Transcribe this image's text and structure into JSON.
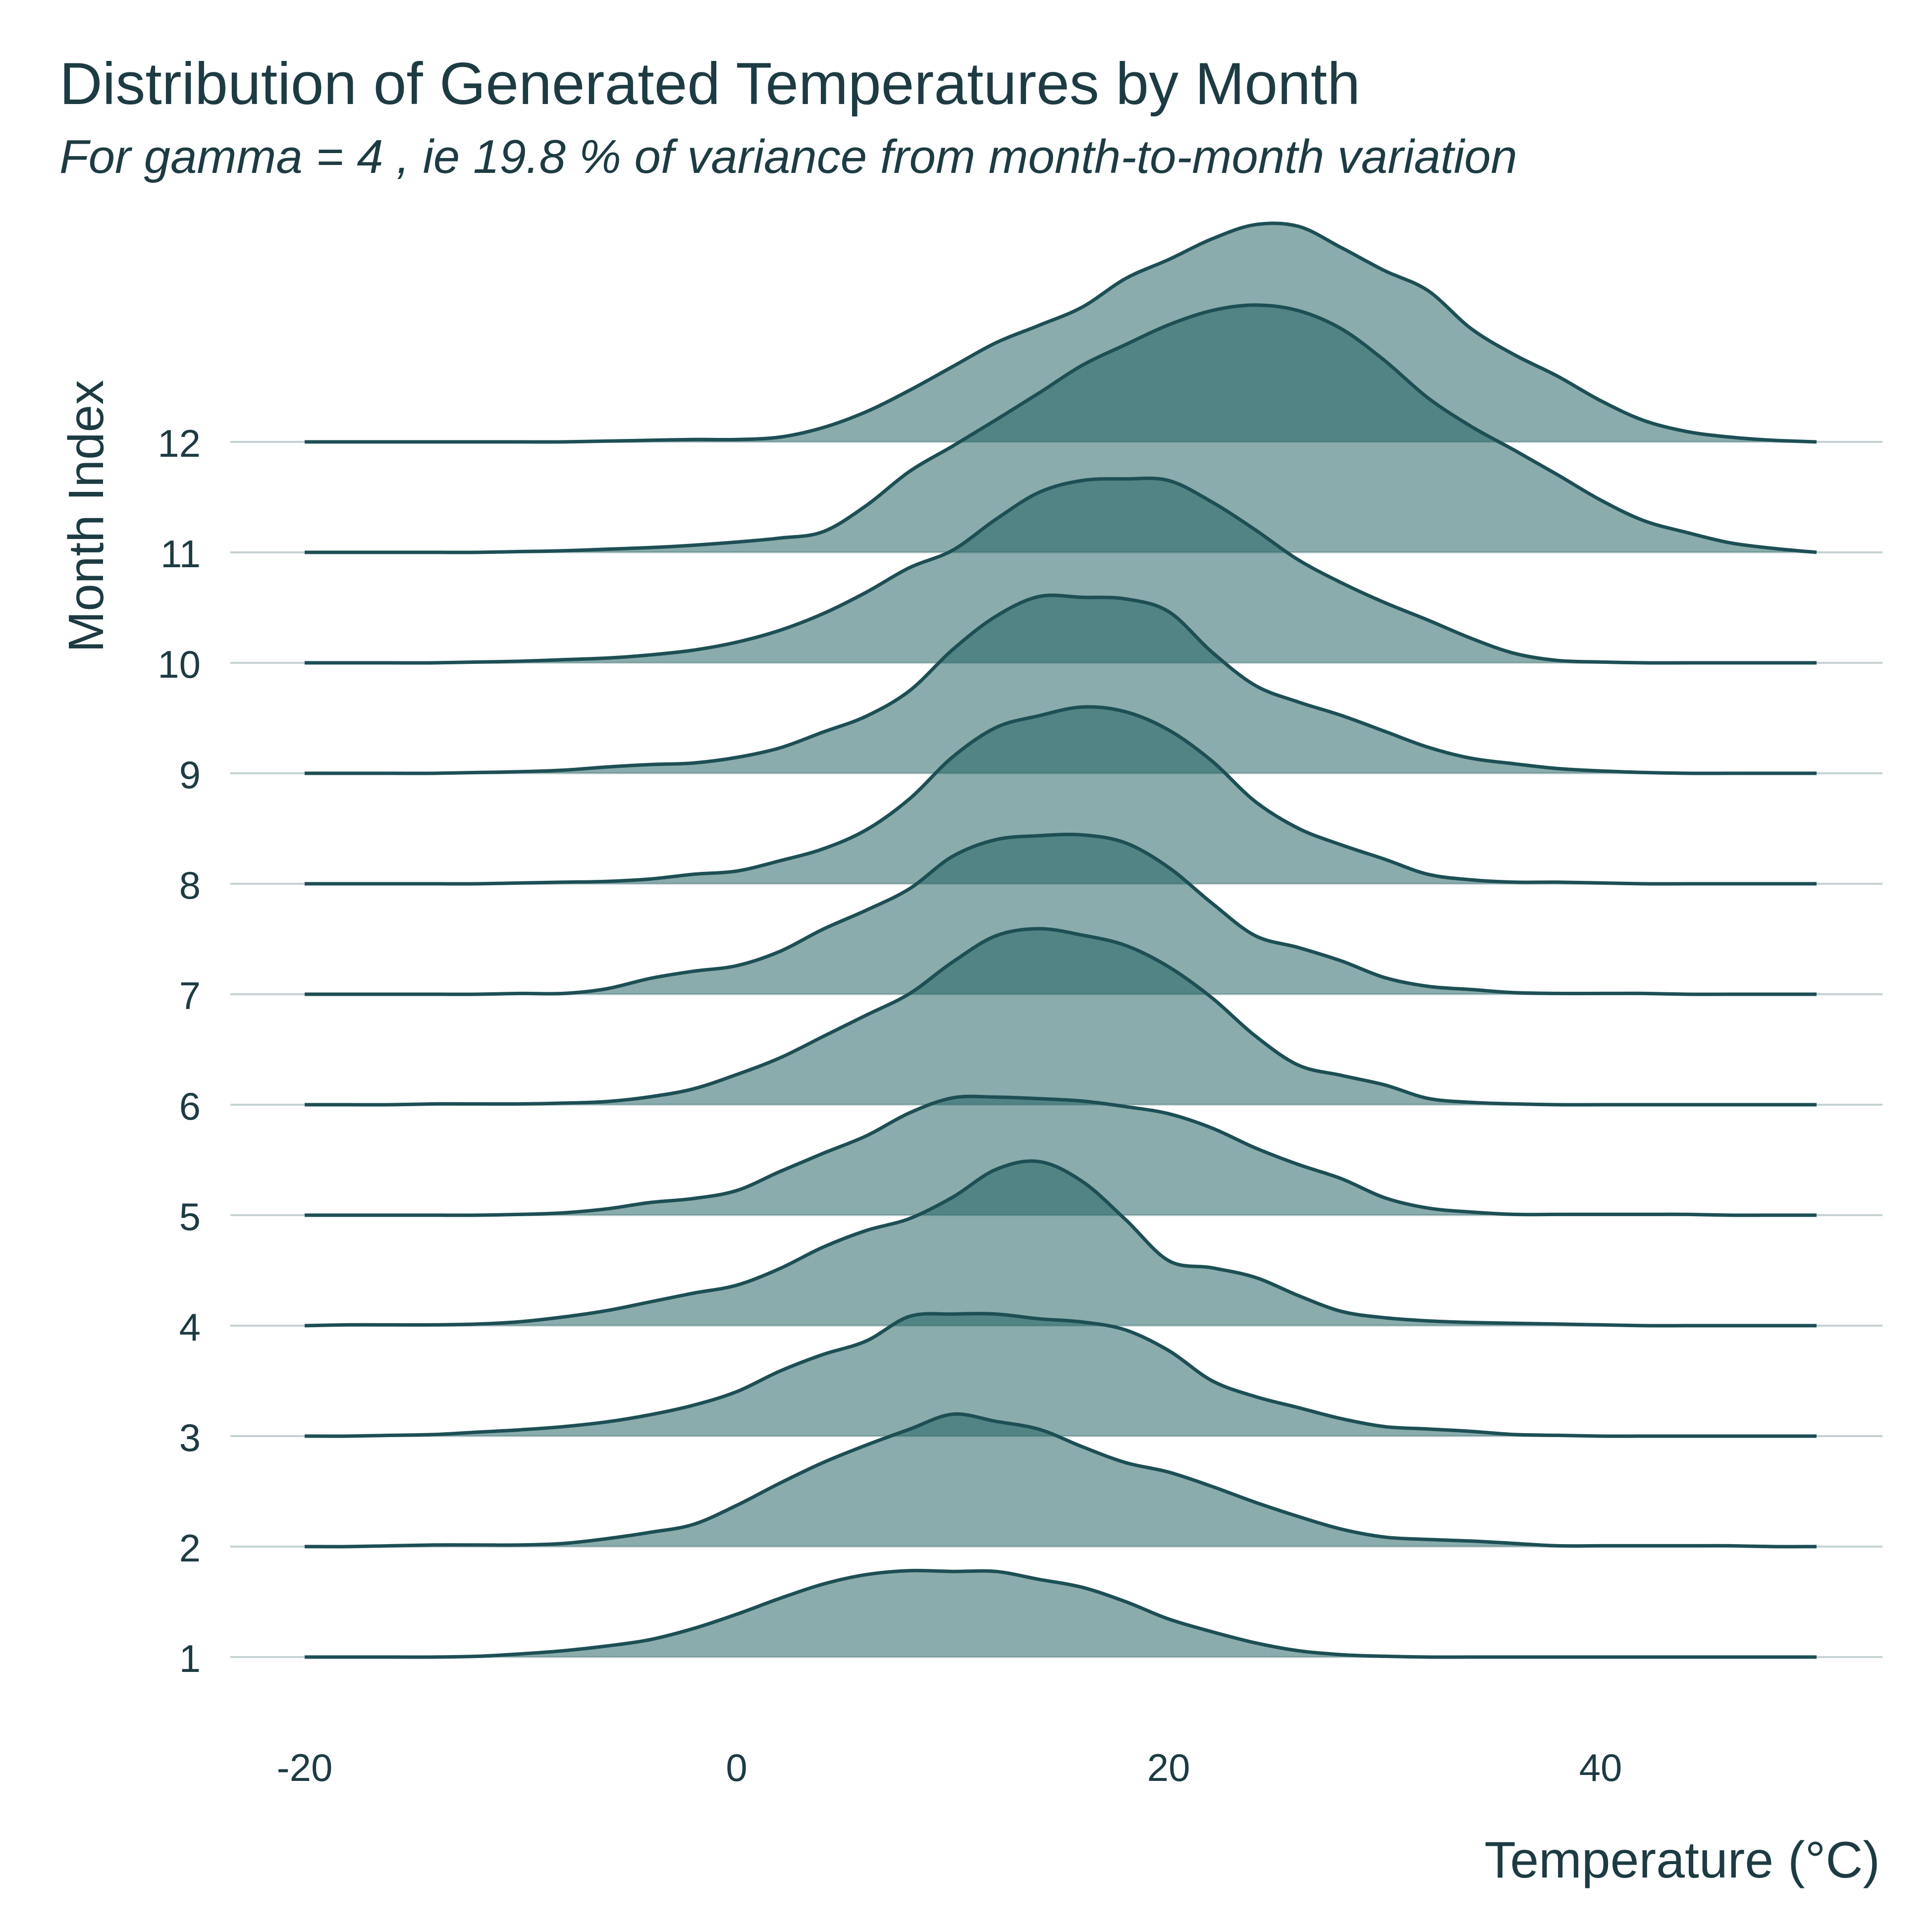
{
  "chart_data": {
    "type": "area",
    "subtype": "ridgeline",
    "title": "Distribution of Generated Temperatures by Month",
    "subtitle": "For gamma = 4 , ie 19.8 % of variance from month-to-month variation",
    "xlabel": "Temperature (°C)",
    "ylabel": "Month Index",
    "xlim": [
      -20,
      50
    ],
    "x_ticks": [
      "-20",
      "0",
      "20",
      "40"
    ],
    "y_ticks": [
      "1",
      "2",
      "3",
      "4",
      "5",
      "6",
      "7",
      "8",
      "9",
      "10",
      "11",
      "12"
    ],
    "grid": "horizontal baselines only",
    "colors": {
      "fill": "#1f5f62",
      "fill_opacity": 0.52,
      "line": "#1d4f55",
      "grid": "#c5d1d2",
      "text": "#1d3b42"
    },
    "x": [
      -20,
      -18,
      -16,
      -14,
      -12,
      -10,
      -8,
      -6,
      -4,
      -2,
      0,
      2,
      4,
      6,
      8,
      10,
      12,
      14,
      16,
      18,
      20,
      22,
      24,
      26,
      28,
      30,
      32,
      34,
      36,
      38,
      40,
      42,
      44,
      46,
      48,
      50
    ],
    "series": [
      {
        "name": "1",
        "values": [
          0,
          0,
          0,
          0,
          0.01,
          0.04,
          0.08,
          0.14,
          0.22,
          0.36,
          0.54,
          0.74,
          0.92,
          1.04,
          1.09,
          1.08,
          1.08,
          0.98,
          0.88,
          0.7,
          0.48,
          0.32,
          0.18,
          0.08,
          0.03,
          0.01,
          0,
          0,
          0,
          0,
          0,
          0,
          0,
          0,
          0,
          0
        ]
      },
      {
        "name": "2",
        "values": [
          0,
          0,
          0.01,
          0.02,
          0.02,
          0.02,
          0.04,
          0.1,
          0.18,
          0.28,
          0.52,
          0.8,
          1.06,
          1.28,
          1.48,
          1.67,
          1.58,
          1.48,
          1.26,
          1.06,
          0.94,
          0.76,
          0.56,
          0.38,
          0.22,
          0.12,
          0.09,
          0.07,
          0.04,
          0.01,
          0.01,
          0.01,
          0.01,
          0.01,
          0,
          0
        ]
      },
      {
        "name": "3",
        "values": [
          0,
          0,
          0.01,
          0.02,
          0.05,
          0.08,
          0.12,
          0.18,
          0.27,
          0.39,
          0.56,
          0.82,
          1.03,
          1.2,
          1.51,
          1.54,
          1.54,
          1.48,
          1.44,
          1.34,
          1.08,
          0.7,
          0.5,
          0.36,
          0.22,
          0.12,
          0.09,
          0.06,
          0.02,
          0.01,
          0,
          0,
          0,
          0,
          0,
          0
        ]
      },
      {
        "name": "4",
        "values": [
          0,
          0.01,
          0.01,
          0.01,
          0.02,
          0.05,
          0.11,
          0.19,
          0.3,
          0.41,
          0.51,
          0.72,
          0.99,
          1.2,
          1.35,
          1.62,
          1.97,
          2.07,
          1.82,
          1.34,
          0.82,
          0.73,
          0.61,
          0.38,
          0.18,
          0.1,
          0.06,
          0.04,
          0.03,
          0.02,
          0.01,
          0,
          0,
          0,
          0,
          0
        ]
      },
      {
        "name": "5",
        "values": [
          0,
          0,
          0,
          0,
          0,
          0.01,
          0.03,
          0.08,
          0.16,
          0.21,
          0.31,
          0.55,
          0.78,
          1.0,
          1.29,
          1.48,
          1.49,
          1.47,
          1.44,
          1.37,
          1.28,
          1.1,
          0.85,
          0.64,
          0.46,
          0.22,
          0.09,
          0.04,
          0.01,
          0.01,
          0.01,
          0.01,
          0.01,
          0,
          0,
          0
        ]
      },
      {
        "name": "6",
        "values": [
          0,
          0,
          0,
          0.01,
          0.01,
          0.01,
          0.02,
          0.04,
          0.1,
          0.2,
          0.38,
          0.59,
          0.86,
          1.13,
          1.4,
          1.8,
          2.13,
          2.22,
          2.14,
          2.01,
          1.74,
          1.35,
          0.87,
          0.5,
          0.37,
          0.25,
          0.08,
          0.03,
          0.01,
          0,
          0,
          0,
          0,
          0,
          0,
          0
        ]
      },
      {
        "name": "7",
        "values": [
          0,
          0,
          0,
          0,
          0,
          0.01,
          0.01,
          0.07,
          0.2,
          0.29,
          0.36,
          0.54,
          0.82,
          1.06,
          1.33,
          1.74,
          1.95,
          2.0,
          2.01,
          1.91,
          1.6,
          1.15,
          0.74,
          0.59,
          0.42,
          0.21,
          0.1,
          0.06,
          0.02,
          0.01,
          0.01,
          0.01,
          0,
          0,
          0,
          0
        ]
      },
      {
        "name": "8",
        "values": [
          0,
          0,
          0,
          0,
          0,
          0.01,
          0.02,
          0.03,
          0.06,
          0.12,
          0.16,
          0.29,
          0.44,
          0.68,
          1.07,
          1.6,
          1.97,
          2.12,
          2.23,
          2.17,
          1.94,
          1.55,
          1.04,
          0.7,
          0.49,
          0.31,
          0.12,
          0.05,
          0.02,
          0.02,
          0.01,
          0,
          0,
          0,
          0,
          0
        ]
      },
      {
        "name": "9",
        "values": [
          0,
          0,
          0,
          0,
          0.01,
          0.02,
          0.04,
          0.08,
          0.11,
          0.13,
          0.2,
          0.32,
          0.52,
          0.72,
          1.04,
          1.56,
          1.98,
          2.23,
          2.22,
          2.2,
          2.04,
          1.53,
          1.11,
          0.9,
          0.73,
          0.53,
          0.33,
          0.19,
          0.12,
          0.06,
          0.03,
          0.01,
          0,
          0,
          0,
          0
        ]
      },
      {
        "name": "10",
        "values": [
          0,
          0,
          0,
          0,
          0.01,
          0.02,
          0.04,
          0.06,
          0.1,
          0.16,
          0.26,
          0.41,
          0.62,
          0.89,
          1.2,
          1.42,
          1.81,
          2.15,
          2.3,
          2.32,
          2.3,
          2.03,
          1.68,
          1.3,
          1.01,
          0.76,
          0.54,
          0.31,
          0.12,
          0.03,
          0.01,
          0,
          0,
          0,
          0,
          0
        ]
      },
      {
        "name": "11",
        "values": [
          0,
          0,
          0,
          0,
          0,
          0.01,
          0.02,
          0.04,
          0.06,
          0.09,
          0.13,
          0.18,
          0.26,
          0.59,
          1.02,
          1.34,
          1.67,
          2.01,
          2.36,
          2.62,
          2.87,
          3.05,
          3.12,
          3.05,
          2.82,
          2.42,
          1.95,
          1.59,
          1.29,
          0.98,
          0.66,
          0.4,
          0.25,
          0.12,
          0.05,
          0
        ]
      },
      {
        "name": "12",
        "values": [
          0,
          0,
          0,
          0,
          0,
          0,
          0,
          0.01,
          0.02,
          0.03,
          0.03,
          0.06,
          0.18,
          0.38,
          0.65,
          0.95,
          1.25,
          1.47,
          1.7,
          2.06,
          2.3,
          2.56,
          2.74,
          2.72,
          2.45,
          2.16,
          1.91,
          1.43,
          1.1,
          0.83,
          0.52,
          0.27,
          0.13,
          0.06,
          0.02,
          0
        ]
      }
    ]
  }
}
